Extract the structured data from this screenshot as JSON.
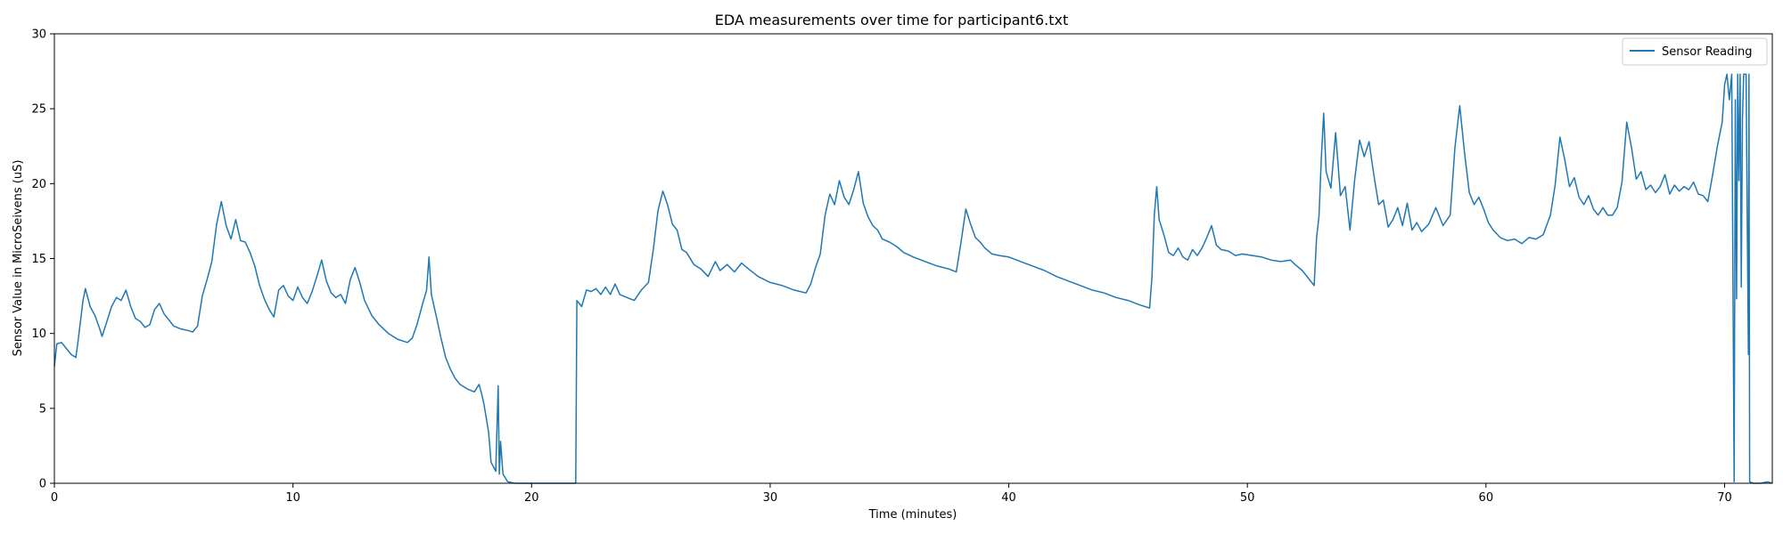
{
  "chart_data": {
    "type": "line",
    "title": "EDA measurements over time for participant6.txt",
    "xlabel": "Time (minutes)",
    "ylabel": "Sensor Value in MicroSeivens (uS)",
    "xlim": [
      0,
      72
    ],
    "ylim": [
      0,
      30
    ],
    "xticks": [
      0,
      10,
      20,
      30,
      40,
      50,
      60,
      70
    ],
    "yticks": [
      0,
      5,
      10,
      15,
      20,
      25,
      30
    ],
    "grid": false,
    "legend_position": "top-right",
    "series": [
      {
        "name": "Sensor Reading",
        "color": "#1f77b4",
        "points": [
          [
            0.0,
            7.8
          ],
          [
            0.1,
            9.3
          ],
          [
            0.3,
            9.4
          ],
          [
            0.5,
            9.0
          ],
          [
            0.7,
            8.6
          ],
          [
            0.9,
            8.4
          ],
          [
            1.0,
            9.6
          ],
          [
            1.2,
            12.2
          ],
          [
            1.3,
            13.0
          ],
          [
            1.5,
            11.8
          ],
          [
            1.7,
            11.2
          ],
          [
            1.9,
            10.3
          ],
          [
            2.0,
            9.8
          ],
          [
            2.2,
            10.8
          ],
          [
            2.4,
            11.8
          ],
          [
            2.6,
            12.4
          ],
          [
            2.8,
            12.2
          ],
          [
            3.0,
            12.9
          ],
          [
            3.2,
            11.8
          ],
          [
            3.4,
            11.0
          ],
          [
            3.6,
            10.8
          ],
          [
            3.8,
            10.4
          ],
          [
            4.0,
            10.6
          ],
          [
            4.2,
            11.6
          ],
          [
            4.4,
            12.0
          ],
          [
            4.6,
            11.3
          ],
          [
            4.8,
            10.9
          ],
          [
            5.0,
            10.5
          ],
          [
            5.3,
            10.3
          ],
          [
            5.6,
            10.2
          ],
          [
            5.8,
            10.1
          ],
          [
            6.0,
            10.5
          ],
          [
            6.2,
            12.5
          ],
          [
            6.4,
            13.6
          ],
          [
            6.6,
            14.8
          ],
          [
            6.8,
            17.3
          ],
          [
            7.0,
            18.8
          ],
          [
            7.2,
            17.2
          ],
          [
            7.4,
            16.3
          ],
          [
            7.6,
            17.6
          ],
          [
            7.8,
            16.2
          ],
          [
            8.0,
            16.1
          ],
          [
            8.2,
            15.4
          ],
          [
            8.4,
            14.5
          ],
          [
            8.6,
            13.2
          ],
          [
            8.8,
            12.3
          ],
          [
            9.0,
            11.6
          ],
          [
            9.2,
            11.1
          ],
          [
            9.4,
            12.9
          ],
          [
            9.6,
            13.2
          ],
          [
            9.8,
            12.5
          ],
          [
            10.0,
            12.2
          ],
          [
            10.2,
            13.1
          ],
          [
            10.4,
            12.4
          ],
          [
            10.6,
            12.0
          ],
          [
            10.8,
            12.8
          ],
          [
            11.0,
            13.8
          ],
          [
            11.2,
            14.9
          ],
          [
            11.4,
            13.5
          ],
          [
            11.6,
            12.7
          ],
          [
            11.8,
            12.4
          ],
          [
            12.0,
            12.6
          ],
          [
            12.2,
            12.0
          ],
          [
            12.4,
            13.6
          ],
          [
            12.6,
            14.4
          ],
          [
            12.8,
            13.4
          ],
          [
            13.0,
            12.2
          ],
          [
            13.3,
            11.2
          ],
          [
            13.6,
            10.6
          ],
          [
            14.0,
            10.0
          ],
          [
            14.4,
            9.6
          ],
          [
            14.8,
            9.4
          ],
          [
            15.0,
            9.7
          ],
          [
            15.2,
            10.6
          ],
          [
            15.4,
            11.8
          ],
          [
            15.6,
            12.9
          ],
          [
            15.7,
            15.1
          ],
          [
            15.8,
            12.6
          ],
          [
            16.0,
            11.2
          ],
          [
            16.2,
            9.7
          ],
          [
            16.4,
            8.4
          ],
          [
            16.6,
            7.6
          ],
          [
            16.8,
            7.0
          ],
          [
            17.0,
            6.6
          ],
          [
            17.3,
            6.3
          ],
          [
            17.6,
            6.1
          ],
          [
            17.8,
            6.6
          ],
          [
            17.9,
            6.0
          ],
          [
            18.0,
            5.3
          ],
          [
            18.2,
            3.4
          ],
          [
            18.3,
            1.4
          ],
          [
            18.4,
            1.1
          ],
          [
            18.5,
            0.8
          ],
          [
            18.6,
            6.5
          ],
          [
            18.65,
            0.6
          ],
          [
            18.7,
            2.8
          ],
          [
            18.8,
            0.6
          ],
          [
            19.0,
            0.1
          ],
          [
            19.3,
            0.0
          ],
          [
            19.6,
            0.0
          ],
          [
            20.0,
            0.0
          ],
          [
            20.5,
            0.0
          ],
          [
            21.0,
            0.0
          ],
          [
            21.5,
            0.0
          ],
          [
            21.85,
            0.0
          ],
          [
            21.9,
            12.2
          ],
          [
            22.1,
            11.8
          ],
          [
            22.3,
            12.9
          ],
          [
            22.5,
            12.8
          ],
          [
            22.7,
            13.0
          ],
          [
            22.9,
            12.6
          ],
          [
            23.1,
            13.1
          ],
          [
            23.3,
            12.6
          ],
          [
            23.5,
            13.3
          ],
          [
            23.7,
            12.6
          ],
          [
            24.0,
            12.4
          ],
          [
            24.3,
            12.2
          ],
          [
            24.6,
            12.9
          ],
          [
            24.9,
            13.4
          ],
          [
            25.1,
            15.6
          ],
          [
            25.3,
            18.2
          ],
          [
            25.5,
            19.5
          ],
          [
            25.7,
            18.6
          ],
          [
            25.9,
            17.3
          ],
          [
            26.1,
            16.9
          ],
          [
            26.3,
            15.6
          ],
          [
            26.5,
            15.4
          ],
          [
            26.8,
            14.6
          ],
          [
            27.1,
            14.3
          ],
          [
            27.4,
            13.8
          ],
          [
            27.7,
            14.8
          ],
          [
            27.9,
            14.2
          ],
          [
            28.2,
            14.6
          ],
          [
            28.5,
            14.1
          ],
          [
            28.8,
            14.7
          ],
          [
            29.1,
            14.3
          ],
          [
            29.5,
            13.8
          ],
          [
            30.0,
            13.4
          ],
          [
            30.5,
            13.2
          ],
          [
            31.0,
            12.9
          ],
          [
            31.5,
            12.7
          ],
          [
            31.7,
            13.3
          ],
          [
            31.9,
            14.4
          ],
          [
            32.1,
            15.3
          ],
          [
            32.3,
            17.9
          ],
          [
            32.5,
            19.3
          ],
          [
            32.7,
            18.6
          ],
          [
            32.9,
            20.2
          ],
          [
            33.1,
            19.1
          ],
          [
            33.3,
            18.6
          ],
          [
            33.5,
            19.6
          ],
          [
            33.7,
            20.8
          ],
          [
            33.9,
            18.7
          ],
          [
            34.1,
            17.8
          ],
          [
            34.3,
            17.2
          ],
          [
            34.5,
            16.9
          ],
          [
            34.7,
            16.3
          ],
          [
            35.0,
            16.1
          ],
          [
            35.3,
            15.8
          ],
          [
            35.6,
            15.4
          ],
          [
            36.0,
            15.1
          ],
          [
            36.5,
            14.8
          ],
          [
            37.0,
            14.5
          ],
          [
            37.5,
            14.3
          ],
          [
            37.8,
            14.1
          ],
          [
            38.0,
            16.1
          ],
          [
            38.2,
            18.3
          ],
          [
            38.4,
            17.3
          ],
          [
            38.6,
            16.4
          ],
          [
            38.8,
            16.1
          ],
          [
            39.0,
            15.7
          ],
          [
            39.3,
            15.3
          ],
          [
            39.6,
            15.2
          ],
          [
            40.0,
            15.1
          ],
          [
            40.5,
            14.8
          ],
          [
            41.0,
            14.5
          ],
          [
            41.5,
            14.2
          ],
          [
            42.0,
            13.8
          ],
          [
            42.5,
            13.5
          ],
          [
            43.0,
            13.2
          ],
          [
            43.5,
            12.9
          ],
          [
            44.0,
            12.7
          ],
          [
            44.5,
            12.4
          ],
          [
            45.0,
            12.2
          ],
          [
            45.5,
            11.9
          ],
          [
            45.9,
            11.7
          ],
          [
            46.0,
            13.7
          ],
          [
            46.1,
            17.9
          ],
          [
            46.2,
            19.8
          ],
          [
            46.3,
            17.6
          ],
          [
            46.5,
            16.6
          ],
          [
            46.7,
            15.4
          ],
          [
            46.9,
            15.2
          ],
          [
            47.1,
            15.7
          ],
          [
            47.3,
            15.1
          ],
          [
            47.5,
            14.9
          ],
          [
            47.7,
            15.6
          ],
          [
            47.9,
            15.2
          ],
          [
            48.1,
            15.7
          ],
          [
            48.3,
            16.4
          ],
          [
            48.5,
            17.2
          ],
          [
            48.7,
            15.9
          ],
          [
            48.9,
            15.6
          ],
          [
            49.2,
            15.5
          ],
          [
            49.5,
            15.2
          ],
          [
            49.8,
            15.3
          ],
          [
            50.2,
            15.2
          ],
          [
            50.6,
            15.1
          ],
          [
            51.0,
            14.9
          ],
          [
            51.4,
            14.8
          ],
          [
            51.8,
            14.9
          ],
          [
            52.0,
            14.6
          ],
          [
            52.3,
            14.2
          ],
          [
            52.6,
            13.6
          ],
          [
            52.8,
            13.2
          ],
          [
            52.9,
            16.4
          ],
          [
            53.0,
            17.8
          ],
          [
            53.1,
            21.8
          ],
          [
            53.2,
            24.7
          ],
          [
            53.3,
            20.8
          ],
          [
            53.5,
            19.7
          ],
          [
            53.7,
            23.4
          ],
          [
            53.9,
            19.2
          ],
          [
            54.1,
            19.8
          ],
          [
            54.3,
            16.9
          ],
          [
            54.5,
            20.3
          ],
          [
            54.7,
            22.9
          ],
          [
            54.9,
            21.8
          ],
          [
            55.1,
            22.8
          ],
          [
            55.3,
            20.6
          ],
          [
            55.5,
            18.6
          ],
          [
            55.7,
            18.9
          ],
          [
            55.9,
            17.1
          ],
          [
            56.1,
            17.6
          ],
          [
            56.3,
            18.4
          ],
          [
            56.5,
            17.2
          ],
          [
            56.7,
            18.7
          ],
          [
            56.9,
            16.9
          ],
          [
            57.1,
            17.4
          ],
          [
            57.3,
            16.8
          ],
          [
            57.6,
            17.3
          ],
          [
            57.9,
            18.4
          ],
          [
            58.2,
            17.2
          ],
          [
            58.5,
            17.9
          ],
          [
            58.7,
            22.4
          ],
          [
            58.9,
            25.2
          ],
          [
            59.1,
            22.1
          ],
          [
            59.3,
            19.4
          ],
          [
            59.5,
            18.6
          ],
          [
            59.7,
            19.1
          ],
          [
            59.9,
            18.3
          ],
          [
            60.1,
            17.4
          ],
          [
            60.3,
            16.9
          ],
          [
            60.6,
            16.4
          ],
          [
            60.9,
            16.2
          ],
          [
            61.2,
            16.3
          ],
          [
            61.5,
            16.0
          ],
          [
            61.8,
            16.4
          ],
          [
            62.1,
            16.3
          ],
          [
            62.4,
            16.6
          ],
          [
            62.7,
            17.9
          ],
          [
            62.9,
            19.9
          ],
          [
            63.1,
            23.1
          ],
          [
            63.3,
            21.6
          ],
          [
            63.5,
            19.8
          ],
          [
            63.7,
            20.4
          ],
          [
            63.9,
            19.1
          ],
          [
            64.1,
            18.6
          ],
          [
            64.3,
            19.2
          ],
          [
            64.5,
            18.3
          ],
          [
            64.7,
            17.9
          ],
          [
            64.9,
            18.4
          ],
          [
            65.1,
            17.9
          ],
          [
            65.3,
            17.9
          ],
          [
            65.5,
            18.4
          ],
          [
            65.7,
            20.1
          ],
          [
            65.9,
            24.1
          ],
          [
            66.1,
            22.4
          ],
          [
            66.3,
            20.3
          ],
          [
            66.5,
            20.8
          ],
          [
            66.7,
            19.6
          ],
          [
            66.9,
            19.9
          ],
          [
            67.1,
            19.4
          ],
          [
            67.3,
            19.8
          ],
          [
            67.5,
            20.6
          ],
          [
            67.7,
            19.3
          ],
          [
            67.9,
            19.9
          ],
          [
            68.1,
            19.5
          ],
          [
            68.3,
            19.8
          ],
          [
            68.5,
            19.6
          ],
          [
            68.7,
            20.1
          ],
          [
            68.9,
            19.3
          ],
          [
            69.1,
            19.2
          ],
          [
            69.3,
            18.8
          ],
          [
            69.5,
            20.6
          ],
          [
            69.7,
            22.5
          ],
          [
            69.9,
            24.1
          ],
          [
            70.0,
            26.6
          ],
          [
            70.1,
            27.3
          ],
          [
            70.2,
            25.6
          ],
          [
            70.3,
            27.3
          ],
          [
            70.4,
            0.1
          ],
          [
            70.45,
            25.6
          ],
          [
            70.5,
            12.3
          ],
          [
            70.55,
            27.3
          ],
          [
            70.6,
            20.2
          ],
          [
            70.65,
            27.3
          ],
          [
            70.7,
            13.1
          ],
          [
            70.75,
            24.3
          ],
          [
            70.8,
            27.3
          ],
          [
            70.9,
            27.3
          ],
          [
            70.95,
            17.6
          ],
          [
            71.0,
            8.6
          ],
          [
            71.02,
            27.3
          ],
          [
            71.05,
            0.1
          ],
          [
            71.2,
            0.0
          ],
          [
            71.5,
            0.0
          ],
          [
            71.8,
            0.1
          ],
          [
            72.0,
            0.0
          ]
        ]
      }
    ]
  }
}
